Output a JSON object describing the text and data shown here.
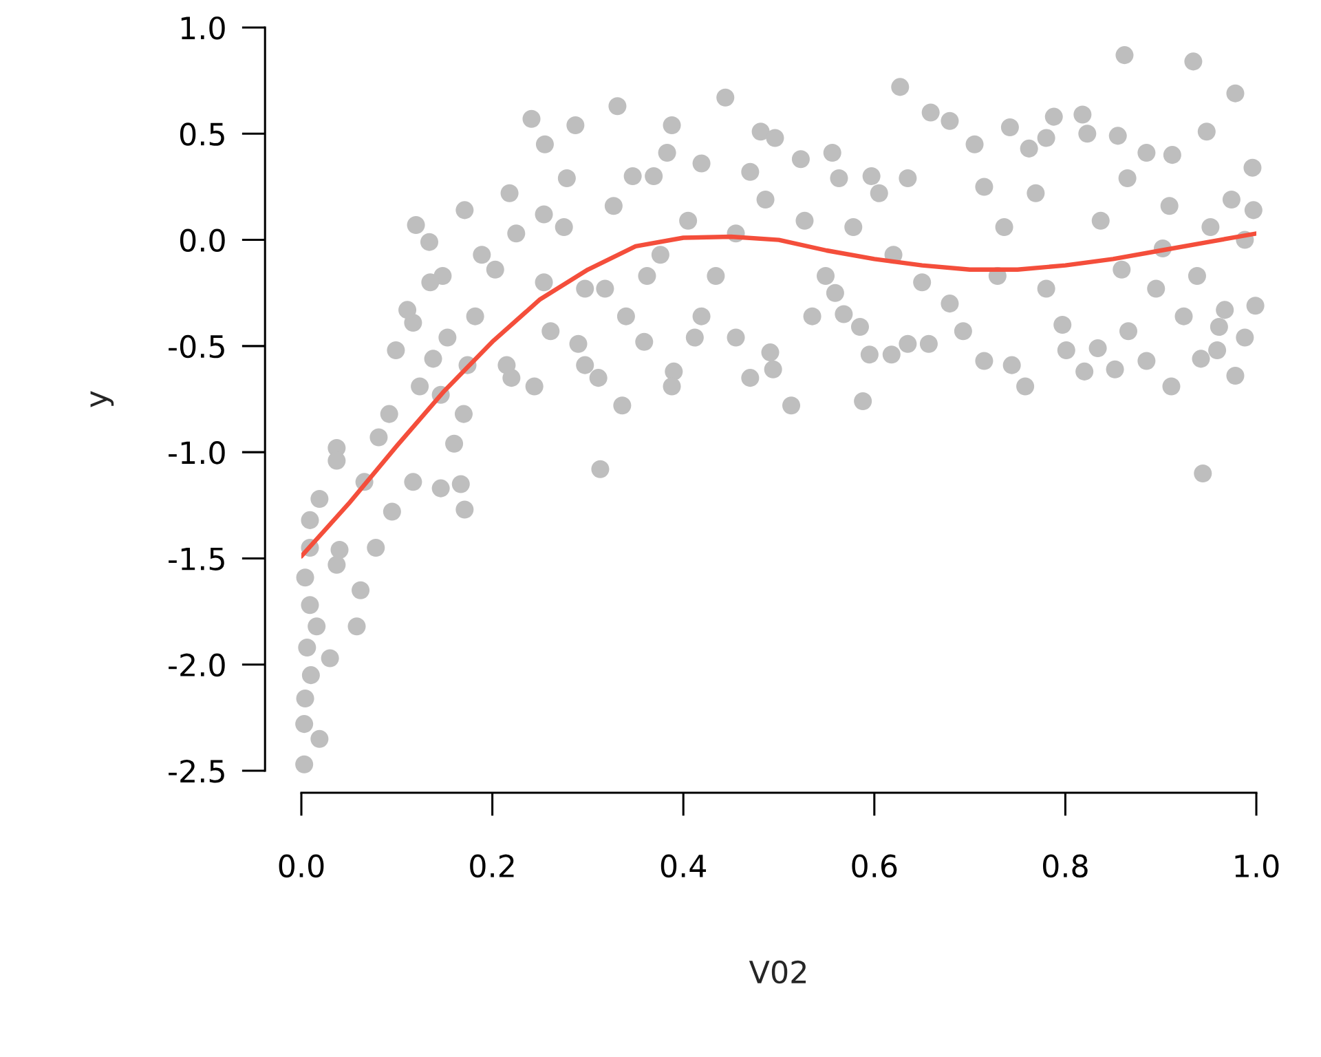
{
  "chart_data": {
    "type": "scatter",
    "xlabel": "V02",
    "ylabel": "y",
    "xlim": [
      0,
      1
    ],
    "ylim": [
      -2.5,
      1
    ],
    "grid": false,
    "xticks": [
      {
        "value": 0,
        "label": "0.0"
      },
      {
        "value": 0.2,
        "label": "0.2"
      },
      {
        "value": 0.4,
        "label": "0.4"
      },
      {
        "value": 0.6,
        "label": "0.6"
      },
      {
        "value": 0.8,
        "label": "0.8"
      },
      {
        "value": 1,
        "label": "1.0"
      }
    ],
    "yticks": [
      {
        "value": -2.5,
        "label": "-2.5"
      },
      {
        "value": -2,
        "label": "-2.0"
      },
      {
        "value": -1.5,
        "label": "-1.5"
      },
      {
        "value": -1,
        "label": "-1.0"
      },
      {
        "value": -0.5,
        "label": "-0.5"
      },
      {
        "value": 0,
        "label": "0.0"
      },
      {
        "value": 0.5,
        "label": "0.5"
      },
      {
        "value": 1,
        "label": "1.0"
      }
    ],
    "series": [
      {
        "color": "#bebebe",
        "marker": "circle",
        "x": [
          0.003,
          0.003,
          0.019,
          0.004,
          0.01,
          0.03,
          0.006,
          0.016,
          0.009,
          0.058,
          0.062,
          0.004,
          0.037,
          0.009,
          0.009,
          0.019,
          0.04,
          0.078,
          0.037,
          0.066,
          0.095,
          0.081,
          0.117,
          0.092,
          0.124,
          0.037,
          0.099,
          0.117,
          0.146,
          0.146,
          0.167,
          0.171,
          0.16,
          0.17,
          0.138,
          0.12,
          0.134,
          0.111,
          0.174,
          0.148,
          0.171,
          0.135,
          0.153,
          0.182,
          0.189,
          0.241,
          0.255,
          0.287,
          0.331,
          0.278,
          0.218,
          0.203,
          0.225,
          0.215,
          0.22,
          0.244,
          0.261,
          0.29,
          0.254,
          0.275,
          0.297,
          0.311,
          0.336,
          0.313,
          0.327,
          0.347,
          0.369,
          0.383,
          0.388,
          0.419,
          0.405,
          0.376,
          0.362,
          0.34,
          0.359,
          0.39,
          0.388,
          0.412,
          0.318,
          0.254,
          0.297,
          0.444,
          0.481,
          0.496,
          0.523,
          0.47,
          0.486,
          0.455,
          0.434,
          0.419,
          0.455,
          0.491,
          0.513,
          0.494,
          0.47,
          0.535,
          0.549,
          0.527,
          0.563,
          0.556,
          0.597,
          0.578,
          0.585,
          0.568,
          0.588,
          0.595,
          0.559,
          0.627,
          0.659,
          0.679,
          0.715,
          0.705,
          0.635,
          0.605,
          0.62,
          0.65,
          0.679,
          0.635,
          0.618,
          0.657,
          0.715,
          0.693,
          0.744,
          0.758,
          0.742,
          0.762,
          0.78,
          0.788,
          0.769,
          0.736,
          0.729,
          0.78,
          0.801,
          0.82,
          0.797,
          0.862,
          0.934,
          0.978,
          0.823,
          0.855,
          0.818,
          0.885,
          0.912,
          0.948,
          0.996,
          0.974,
          0.997,
          0.988,
          0.952,
          0.909,
          0.865,
          0.837,
          0.859,
          0.895,
          0.924,
          0.967,
          0.999,
          0.988,
          0.978,
          0.942,
          0.959,
          0.961,
          0.944,
          0.911,
          0.885,
          0.852,
          0.834,
          0.866,
          0.902,
          0.938
        ],
        "values": [
          -2.47,
          -2.28,
          -2.35,
          -2.16,
          -2.05,
          -1.97,
          -1.92,
          -1.82,
          -1.72,
          -1.82,
          -1.65,
          -1.59,
          -1.53,
          -1.45,
          -1.32,
          -1.22,
          -1.46,
          -1.45,
          -0.98,
          -1.14,
          -1.28,
          -0.93,
          -1.14,
          -0.82,
          -0.69,
          -1.04,
          -0.52,
          -0.39,
          -0.73,
          -1.17,
          -1.15,
          -1.27,
          -0.96,
          -0.82,
          -0.56,
          0.07,
          -0.01,
          -0.33,
          -0.59,
          -0.17,
          0.14,
          -0.2,
          -0.46,
          -0.36,
          -0.07,
          0.57,
          0.45,
          0.54,
          0.63,
          0.29,
          0.22,
          -0.14,
          0.03,
          -0.59,
          -0.65,
          -0.69,
          -0.43,
          -0.49,
          0.12,
          0.06,
          -0.59,
          -0.65,
          -0.78,
          -1.08,
          0.16,
          0.3,
          0.3,
          0.41,
          0.54,
          0.36,
          0.09,
          -0.07,
          -0.17,
          -0.36,
          -0.48,
          -0.62,
          -0.69,
          -0.46,
          -0.23,
          -0.2,
          -0.23,
          0.67,
          0.51,
          0.48,
          0.38,
          0.32,
          0.19,
          0.03,
          -0.17,
          -0.36,
          -0.46,
          -0.53,
          -0.78,
          -0.61,
          -0.65,
          -0.36,
          -0.17,
          0.09,
          0.29,
          0.41,
          0.3,
          0.06,
          -0.41,
          -0.35,
          -0.76,
          -0.54,
          -0.25,
          0.72,
          0.6,
          0.56,
          0.25,
          0.45,
          0.29,
          0.22,
          -0.07,
          -0.2,
          -0.3,
          -0.49,
          -0.54,
          -0.49,
          -0.57,
          -0.43,
          -0.59,
          -0.69,
          0.53,
          0.43,
          0.48,
          0.58,
          0.22,
          0.06,
          -0.17,
          -0.23,
          -0.52,
          -0.62,
          -0.4,
          0.87,
          0.84,
          0.69,
          0.5,
          0.49,
          0.59,
          0.41,
          0.4,
          0.51,
          0.34,
          0.19,
          0.14,
          0.0,
          0.06,
          0.16,
          0.29,
          0.09,
          -0.14,
          -0.23,
          -0.36,
          -0.33,
          -0.31,
          -0.46,
          -0.64,
          -0.56,
          -0.52,
          -0.41,
          -1.1,
          -0.69,
          -0.57,
          -0.61,
          -0.51,
          -0.43,
          -0.04,
          -0.17
        ]
      },
      {
        "type": "line",
        "color": "#f44e3b",
        "line_style": "solid",
        "x": [
          0,
          0.05,
          0.1,
          0.15,
          0.2,
          0.25,
          0.3,
          0.35,
          0.4,
          0.45,
          0.5,
          0.55,
          0.6,
          0.65,
          0.7,
          0.75,
          0.8,
          0.85,
          0.9,
          0.95,
          1
        ],
        "values": [
          -1.49,
          -1.24,
          -0.97,
          -0.71,
          -0.48,
          -0.28,
          -0.14,
          -0.03,
          0.01,
          0.015,
          0.0,
          -0.05,
          -0.09,
          -0.12,
          -0.14,
          -0.14,
          -0.12,
          -0.09,
          -0.05,
          -0.01,
          0.03
        ]
      }
    ]
  }
}
